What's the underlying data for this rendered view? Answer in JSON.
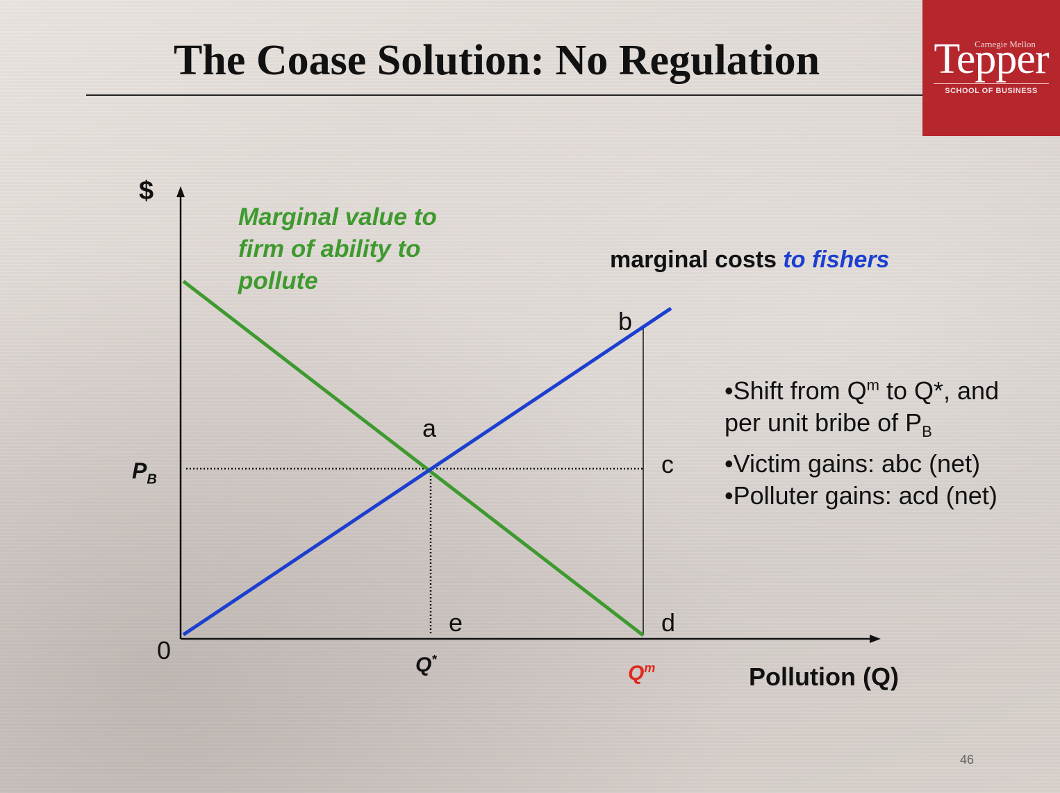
{
  "title": "The Coase Solution: No Regulation",
  "logo": {
    "top": "Carnegie Mellon",
    "main": "Tepper",
    "sub": "SCHOOL OF BUSINESS",
    "color": "#b5262d"
  },
  "axes": {
    "y_label": "$",
    "x_label": "Pollution (Q)",
    "origin": "0",
    "price_label_main": "P",
    "price_label_sub": "B",
    "qstar_main": "Q",
    "qstar_sup": "*",
    "qm_main": "Q",
    "qm_sup": "m"
  },
  "curves": {
    "mv_label_lines": [
      "Marginal value to",
      "firm of ability to",
      "pollute"
    ],
    "mv_color": "#3e9a2e",
    "mc_label_prefix": "marginal costs ",
    "mc_label_highlight": "to fishers",
    "mc_color": "#1c3fd0"
  },
  "points": {
    "a": "a",
    "b": "b",
    "c": "c",
    "d": "d",
    "e": "e"
  },
  "bullets": {
    "line1_a": "•Shift from Q",
    "line1_sup": "m",
    "line1_b": " to Q*, and",
    "line2_a": "per unit bribe of P",
    "line2_sub": "B",
    "line3": "•Victim gains: abc (net)",
    "line4": "•Polluter gains: acd (net)"
  },
  "page_number": "46"
}
